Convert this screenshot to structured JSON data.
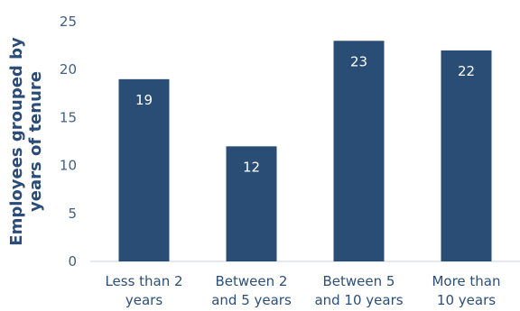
{
  "chart_data": {
    "type": "bar",
    "categories": [
      [
        "Less than 2",
        "years"
      ],
      [
        "Between 2",
        "and 5 years"
      ],
      [
        "Between 5",
        "and 10 years"
      ],
      [
        "More than",
        "10 years"
      ]
    ],
    "values": [
      19,
      12,
      23,
      22
    ],
    "ylabel": [
      "Employees grouped by",
      "years of tenure"
    ],
    "ylim": [
      0,
      25
    ],
    "yticks": [
      0,
      5,
      10,
      15,
      20,
      25
    ],
    "grid": false,
    "legend": "none",
    "bar_color": "#2a4d75",
    "axis_color": "#c9d3df"
  }
}
